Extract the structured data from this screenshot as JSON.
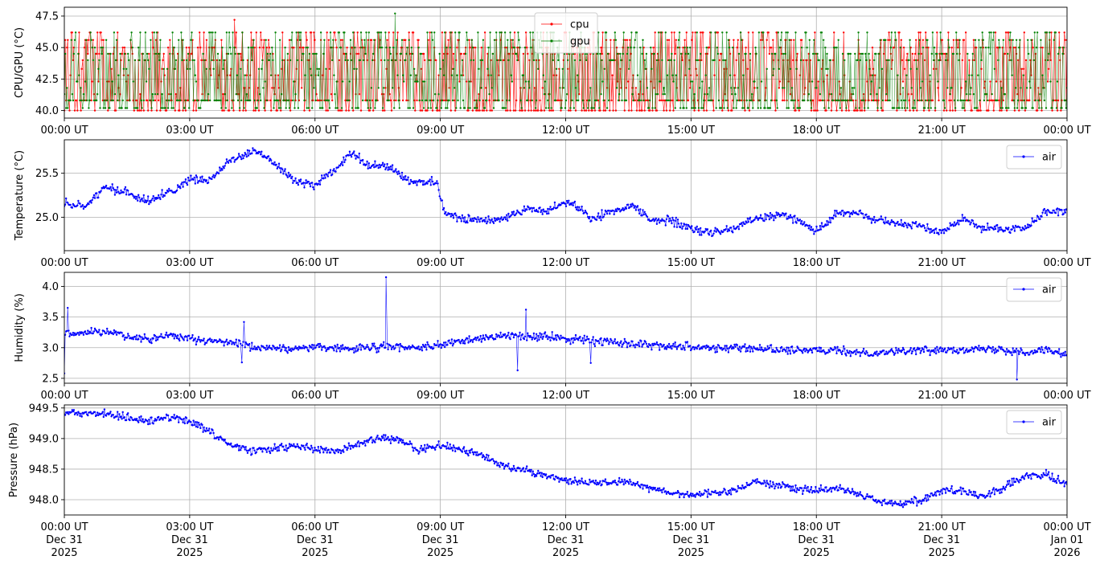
{
  "chart_data": [
    {
      "type": "line",
      "ylabel": "CPU/GPU (°C)",
      "ylim": [
        39.4,
        48.2
      ],
      "yticks": [
        "40.0",
        "42.5",
        "45.0",
        "47.5"
      ],
      "ytick_values": [
        40.0,
        42.5,
        45.0,
        47.5
      ],
      "xlim_hours": [
        0,
        24
      ],
      "xticks": [
        "00:00 UT",
        "03:00 UT",
        "06:00 UT",
        "09:00 UT",
        "12:00 UT",
        "15:00 UT",
        "18:00 UT",
        "21:00 UT",
        "00:00 UT"
      ],
      "grid": true,
      "legend_position": "top-center",
      "series": [
        {
          "name": "cpu",
          "color": "#ff0000",
          "shape": "quantized-oscillation",
          "levels": [
            40.0,
            40.8,
            41.3,
            41.8,
            42.3,
            42.8,
            43.3,
            44.0,
            44.5,
            45.0,
            45.6,
            46.2
          ],
          "max": 47.2
        },
        {
          "name": "gpu",
          "color": "#008000",
          "shape": "quantized-oscillation",
          "levels": [
            40.2,
            40.8,
            41.3,
            41.8,
            42.3,
            42.8,
            43.3,
            44.0,
            44.5,
            45.0,
            45.6,
            46.2
          ],
          "max": 47.7
        }
      ]
    },
    {
      "type": "line",
      "ylabel": "Temperature (°C)",
      "ylim": [
        24.62,
        25.88
      ],
      "yticks": [
        "25.0",
        "25.5"
      ],
      "ytick_values": [
        25.0,
        25.5
      ],
      "xlim_hours": [
        0,
        24
      ],
      "xticks": [
        "00:00 UT",
        "03:00 UT",
        "06:00 UT",
        "09:00 UT",
        "12:00 UT",
        "15:00 UT",
        "18:00 UT",
        "21:00 UT",
        "00:00 UT"
      ],
      "grid": true,
      "legend_position": "top-right",
      "series": [
        {
          "name": "air",
          "color": "#0000ff",
          "x_hours": [
            0,
            0.5,
            1,
            1.5,
            2,
            2.5,
            3,
            3.5,
            4,
            4.6,
            5,
            5.5,
            6,
            6.5,
            6.9,
            7.3,
            7.8,
            8.3,
            8.9,
            9.1,
            9.5,
            10,
            10.5,
            11,
            11.5,
            12.1,
            12.6,
            13,
            13.6,
            14,
            14.5,
            15,
            15.5,
            16,
            16.5,
            17.2,
            17.6,
            18,
            18.5,
            19,
            19.5,
            20,
            20.5,
            21,
            21.5,
            22,
            22.5,
            23,
            23.5,
            24
          ],
          "y": [
            25.16,
            25.12,
            25.34,
            25.28,
            25.18,
            25.28,
            25.42,
            25.44,
            25.66,
            25.76,
            25.62,
            25.42,
            25.36,
            25.56,
            25.74,
            25.58,
            25.58,
            25.38,
            25.4,
            25.06,
            24.98,
            24.96,
            24.98,
            25.1,
            25.06,
            25.18,
            24.98,
            25.04,
            25.14,
            24.98,
            24.96,
            24.86,
            24.82,
            24.86,
            24.98,
            25.04,
            24.96,
            24.84,
            25.04,
            25.04,
            24.96,
            24.92,
            24.9,
            24.82,
            25.0,
            24.88,
            24.86,
            24.88,
            25.06,
            25.06
          ]
        }
      ]
    },
    {
      "type": "line",
      "ylabel": "Humidity (%)",
      "ylim": [
        2.42,
        4.23
      ],
      "yticks": [
        "2.5",
        "3.0",
        "3.5",
        "4.0"
      ],
      "ytick_values": [
        2.5,
        3.0,
        3.5,
        4.0
      ],
      "xlim_hours": [
        0,
        24
      ],
      "xticks": [
        "00:00 UT",
        "03:00 UT",
        "06:00 UT",
        "09:00 UT",
        "12:00 UT",
        "15:00 UT",
        "18:00 UT",
        "21:00 UT",
        "00:00 UT"
      ],
      "grid": true,
      "legend_position": "top-right",
      "series": [
        {
          "name": "air",
          "color": "#0000ff",
          "x_hours": [
            0,
            0.5,
            1,
            1.5,
            2,
            2.5,
            3,
            3.5,
            4,
            4.5,
            5,
            5.5,
            6,
            6.5,
            7,
            7.5,
            8,
            8.5,
            9,
            9.5,
            10,
            10.5,
            11,
            11.5,
            12,
            12.5,
            13,
            13.5,
            14,
            14.5,
            15,
            15.5,
            16,
            16.5,
            17,
            17.5,
            18,
            18.5,
            19,
            19.5,
            20,
            20.5,
            21,
            21.5,
            22,
            22.5,
            23,
            23.5,
            24
          ],
          "y": [
            3.2,
            3.25,
            3.28,
            3.18,
            3.15,
            3.2,
            3.15,
            3.1,
            3.08,
            3.0,
            3.0,
            2.98,
            3.02,
            3.0,
            2.98,
            3.0,
            3.02,
            3.0,
            3.05,
            3.1,
            3.15,
            3.2,
            3.18,
            3.18,
            3.15,
            3.12,
            3.1,
            3.08,
            3.05,
            3.04,
            3.02,
            3.0,
            3.0,
            2.98,
            2.98,
            2.95,
            2.95,
            2.95,
            2.92,
            2.92,
            2.95,
            2.95,
            2.97,
            2.98,
            2.97,
            2.97,
            2.93,
            2.98,
            2.88
          ],
          "outliers": [
            {
              "x_hours": 0.08,
              "y": 3.65
            },
            {
              "x_hours": 4.25,
              "y": 2.76
            },
            {
              "x_hours": 4.3,
              "y": 3.42
            },
            {
              "x_hours": 7.7,
              "y": 4.15
            },
            {
              "x_hours": 10.85,
              "y": 2.63
            },
            {
              "x_hours": 11.05,
              "y": 3.62
            },
            {
              "x_hours": 12.6,
              "y": 2.75
            },
            {
              "x_hours": 22.8,
              "y": 2.48
            },
            {
              "x_hours": 0.0,
              "y": 2.58
            }
          ]
        }
      ]
    },
    {
      "type": "line",
      "ylabel": "Pressure (hPa)",
      "ylim": [
        947.75,
        949.55
      ],
      "yticks": [
        "948.0",
        "948.5",
        "949.0",
        "949.5"
      ],
      "ytick_values": [
        948.0,
        948.5,
        949.0,
        949.5
      ],
      "xlim_hours": [
        0,
        24
      ],
      "xticks": [
        "00:00 UT\nDec 31\n2025",
        "03:00 UT\nDec 31\n2025",
        "06:00 UT\nDec 31\n2025",
        "09:00 UT\nDec 31\n2025",
        "12:00 UT\nDec 31\n2025",
        "15:00 UT\nDec 31\n2025",
        "18:00 UT\nDec 31\n2025",
        "21:00 UT\nDec 31\n2025",
        "00:00 UT\nJan 01\n2026"
      ],
      "grid": true,
      "legend_position": "top-right",
      "series": [
        {
          "name": "air",
          "color": "#0000ff",
          "x_hours": [
            0,
            0.5,
            1,
            1.5,
            2,
            2.5,
            3,
            3.5,
            4,
            4.5,
            5,
            5.5,
            6,
            6.5,
            7,
            7.5,
            8,
            8.5,
            9,
            9.5,
            10,
            10.5,
            11,
            11.5,
            12,
            12.5,
            13,
            13.5,
            14,
            14.5,
            15,
            15.5,
            16,
            16.5,
            17,
            17.5,
            18,
            18.5,
            19,
            19.5,
            20,
            20.5,
            21,
            21.5,
            22,
            22.5,
            23,
            23.5,
            24
          ],
          "y": [
            949.42,
            949.4,
            949.42,
            949.35,
            949.28,
            949.35,
            949.28,
            949.1,
            948.88,
            948.8,
            948.82,
            948.88,
            948.82,
            948.78,
            948.9,
            949.0,
            948.98,
            948.82,
            948.88,
            948.82,
            948.72,
            948.55,
            948.5,
            948.4,
            948.32,
            948.28,
            948.28,
            948.3,
            948.2,
            948.12,
            948.08,
            948.1,
            948.15,
            948.3,
            948.25,
            948.18,
            948.15,
            948.2,
            948.1,
            947.98,
            947.92,
            948.0,
            948.15,
            948.15,
            948.05,
            948.2,
            948.38,
            948.4,
            948.25
          ]
        }
      ]
    }
  ]
}
